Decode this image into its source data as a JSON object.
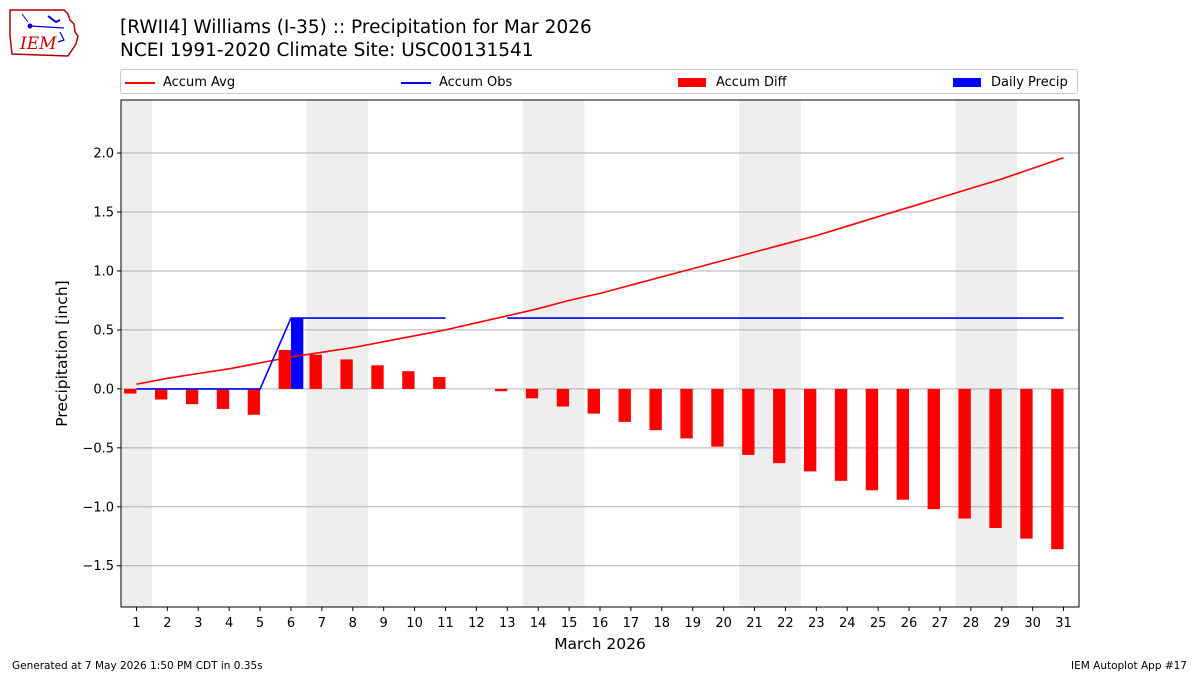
{
  "header": {
    "logo_icon": "iem-iowa-logo-icon",
    "logo_text": "IEM",
    "title_line1": "[RWII4] Williams (I-35) :: Precipitation for Mar 2026",
    "title_line2": "NCEI 1991-2020 Climate Site: USC00131541"
  },
  "footer": {
    "left": "Generated at 7 May 2026 1:50 PM CDT in 0.35s",
    "right": "IEM Autoplot App #17"
  },
  "chart_data": {
    "type": "bar",
    "title": "[RWII4] Williams (I-35) :: Precipitation for Mar 2026",
    "subtitle": "NCEI 1991-2020 Climate Site: USC00131541",
    "xlabel": "March 2026",
    "ylabel": "Precipitation [inch]",
    "xlim": [
      0.5,
      31.5
    ],
    "ylim": [
      -1.85,
      2.45
    ],
    "grid": true,
    "legend_placement": "top",
    "x_ticks": [
      1,
      2,
      3,
      4,
      5,
      6,
      7,
      8,
      9,
      10,
      11,
      12,
      13,
      14,
      15,
      16,
      17,
      18,
      19,
      20,
      21,
      22,
      23,
      24,
      25,
      26,
      27,
      28,
      29,
      30,
      31
    ],
    "y_ticks": [
      {
        "value": -1.5,
        "label": "−1.5"
      },
      {
        "value": -1.0,
        "label": "−1.0"
      },
      {
        "value": -0.5,
        "label": "−0.5"
      },
      {
        "value": 0.0,
        "label": "0.0"
      },
      {
        "value": 0.5,
        "label": "0.5"
      },
      {
        "value": 1.0,
        "label": "1.0"
      },
      {
        "value": 1.5,
        "label": "1.5"
      },
      {
        "value": 2.0,
        "label": "2.0"
      }
    ],
    "weekend_shading": [
      [
        0.5,
        1.5
      ],
      [
        6.5,
        8.5
      ],
      [
        13.5,
        15.5
      ],
      [
        20.5,
        22.5
      ],
      [
        27.5,
        29.5
      ]
    ],
    "colors": {
      "accum_avg": "#ff0000",
      "accum_obs": "#0000ff",
      "accum_diff": "#ff0000",
      "daily_precip": "#0000ff",
      "weekend": "#eeeeee",
      "grid": "#b0b0b0"
    },
    "series": [
      {
        "name": "Accum Avg",
        "kind": "line",
        "x": [
          1,
          2,
          3,
          4,
          5,
          6,
          7,
          8,
          9,
          10,
          11,
          12,
          13,
          14,
          15,
          16,
          17,
          18,
          19,
          20,
          21,
          22,
          23,
          24,
          25,
          26,
          27,
          28,
          29,
          30,
          31
        ],
        "values": [
          0.04,
          0.09,
          0.13,
          0.17,
          0.22,
          0.27,
          0.31,
          0.35,
          0.4,
          0.45,
          0.5,
          0.56,
          0.62,
          0.68,
          0.75,
          0.81,
          0.88,
          0.95,
          1.02,
          1.09,
          1.16,
          1.23,
          1.3,
          1.38,
          1.46,
          1.54,
          1.62,
          1.7,
          1.78,
          1.87,
          1.96
        ]
      },
      {
        "name": "Accum Obs",
        "kind": "line",
        "x": [
          1,
          2,
          3,
          4,
          5,
          6,
          7,
          8,
          9,
          10,
          11,
          12,
          13,
          14,
          15,
          16,
          17,
          18,
          19,
          20,
          21,
          22,
          23,
          24,
          25,
          26,
          27,
          28,
          29,
          30,
          31
        ],
        "values": [
          0,
          0,
          0,
          0,
          0,
          0.6,
          0.6,
          0.6,
          0.6,
          0.6,
          0.6,
          null,
          0.6,
          0.6,
          0.6,
          0.6,
          0.6,
          0.6,
          0.6,
          0.6,
          0.6,
          0.6,
          0.6,
          0.6,
          0.6,
          0.6,
          0.6,
          0.6,
          0.6,
          0.6,
          0.6
        ]
      },
      {
        "name": "Accum Diff",
        "kind": "bar",
        "x": [
          1,
          2,
          3,
          4,
          5,
          6,
          7,
          8,
          9,
          10,
          11,
          12,
          13,
          14,
          15,
          16,
          17,
          18,
          19,
          20,
          21,
          22,
          23,
          24,
          25,
          26,
          27,
          28,
          29,
          30,
          31
        ],
        "values": [
          -0.04,
          -0.09,
          -0.13,
          -0.17,
          -0.22,
          0.33,
          0.29,
          0.25,
          0.2,
          0.15,
          0.1,
          null,
          -0.02,
          -0.08,
          -0.15,
          -0.21,
          -0.28,
          -0.35,
          -0.42,
          -0.49,
          -0.56,
          -0.63,
          -0.7,
          -0.78,
          -0.86,
          -0.94,
          -1.02,
          -1.1,
          -1.18,
          -1.27,
          -1.36
        ]
      },
      {
        "name": "Daily Precip",
        "kind": "bar",
        "x": [
          6
        ],
        "values": [
          0.6
        ]
      }
    ]
  }
}
